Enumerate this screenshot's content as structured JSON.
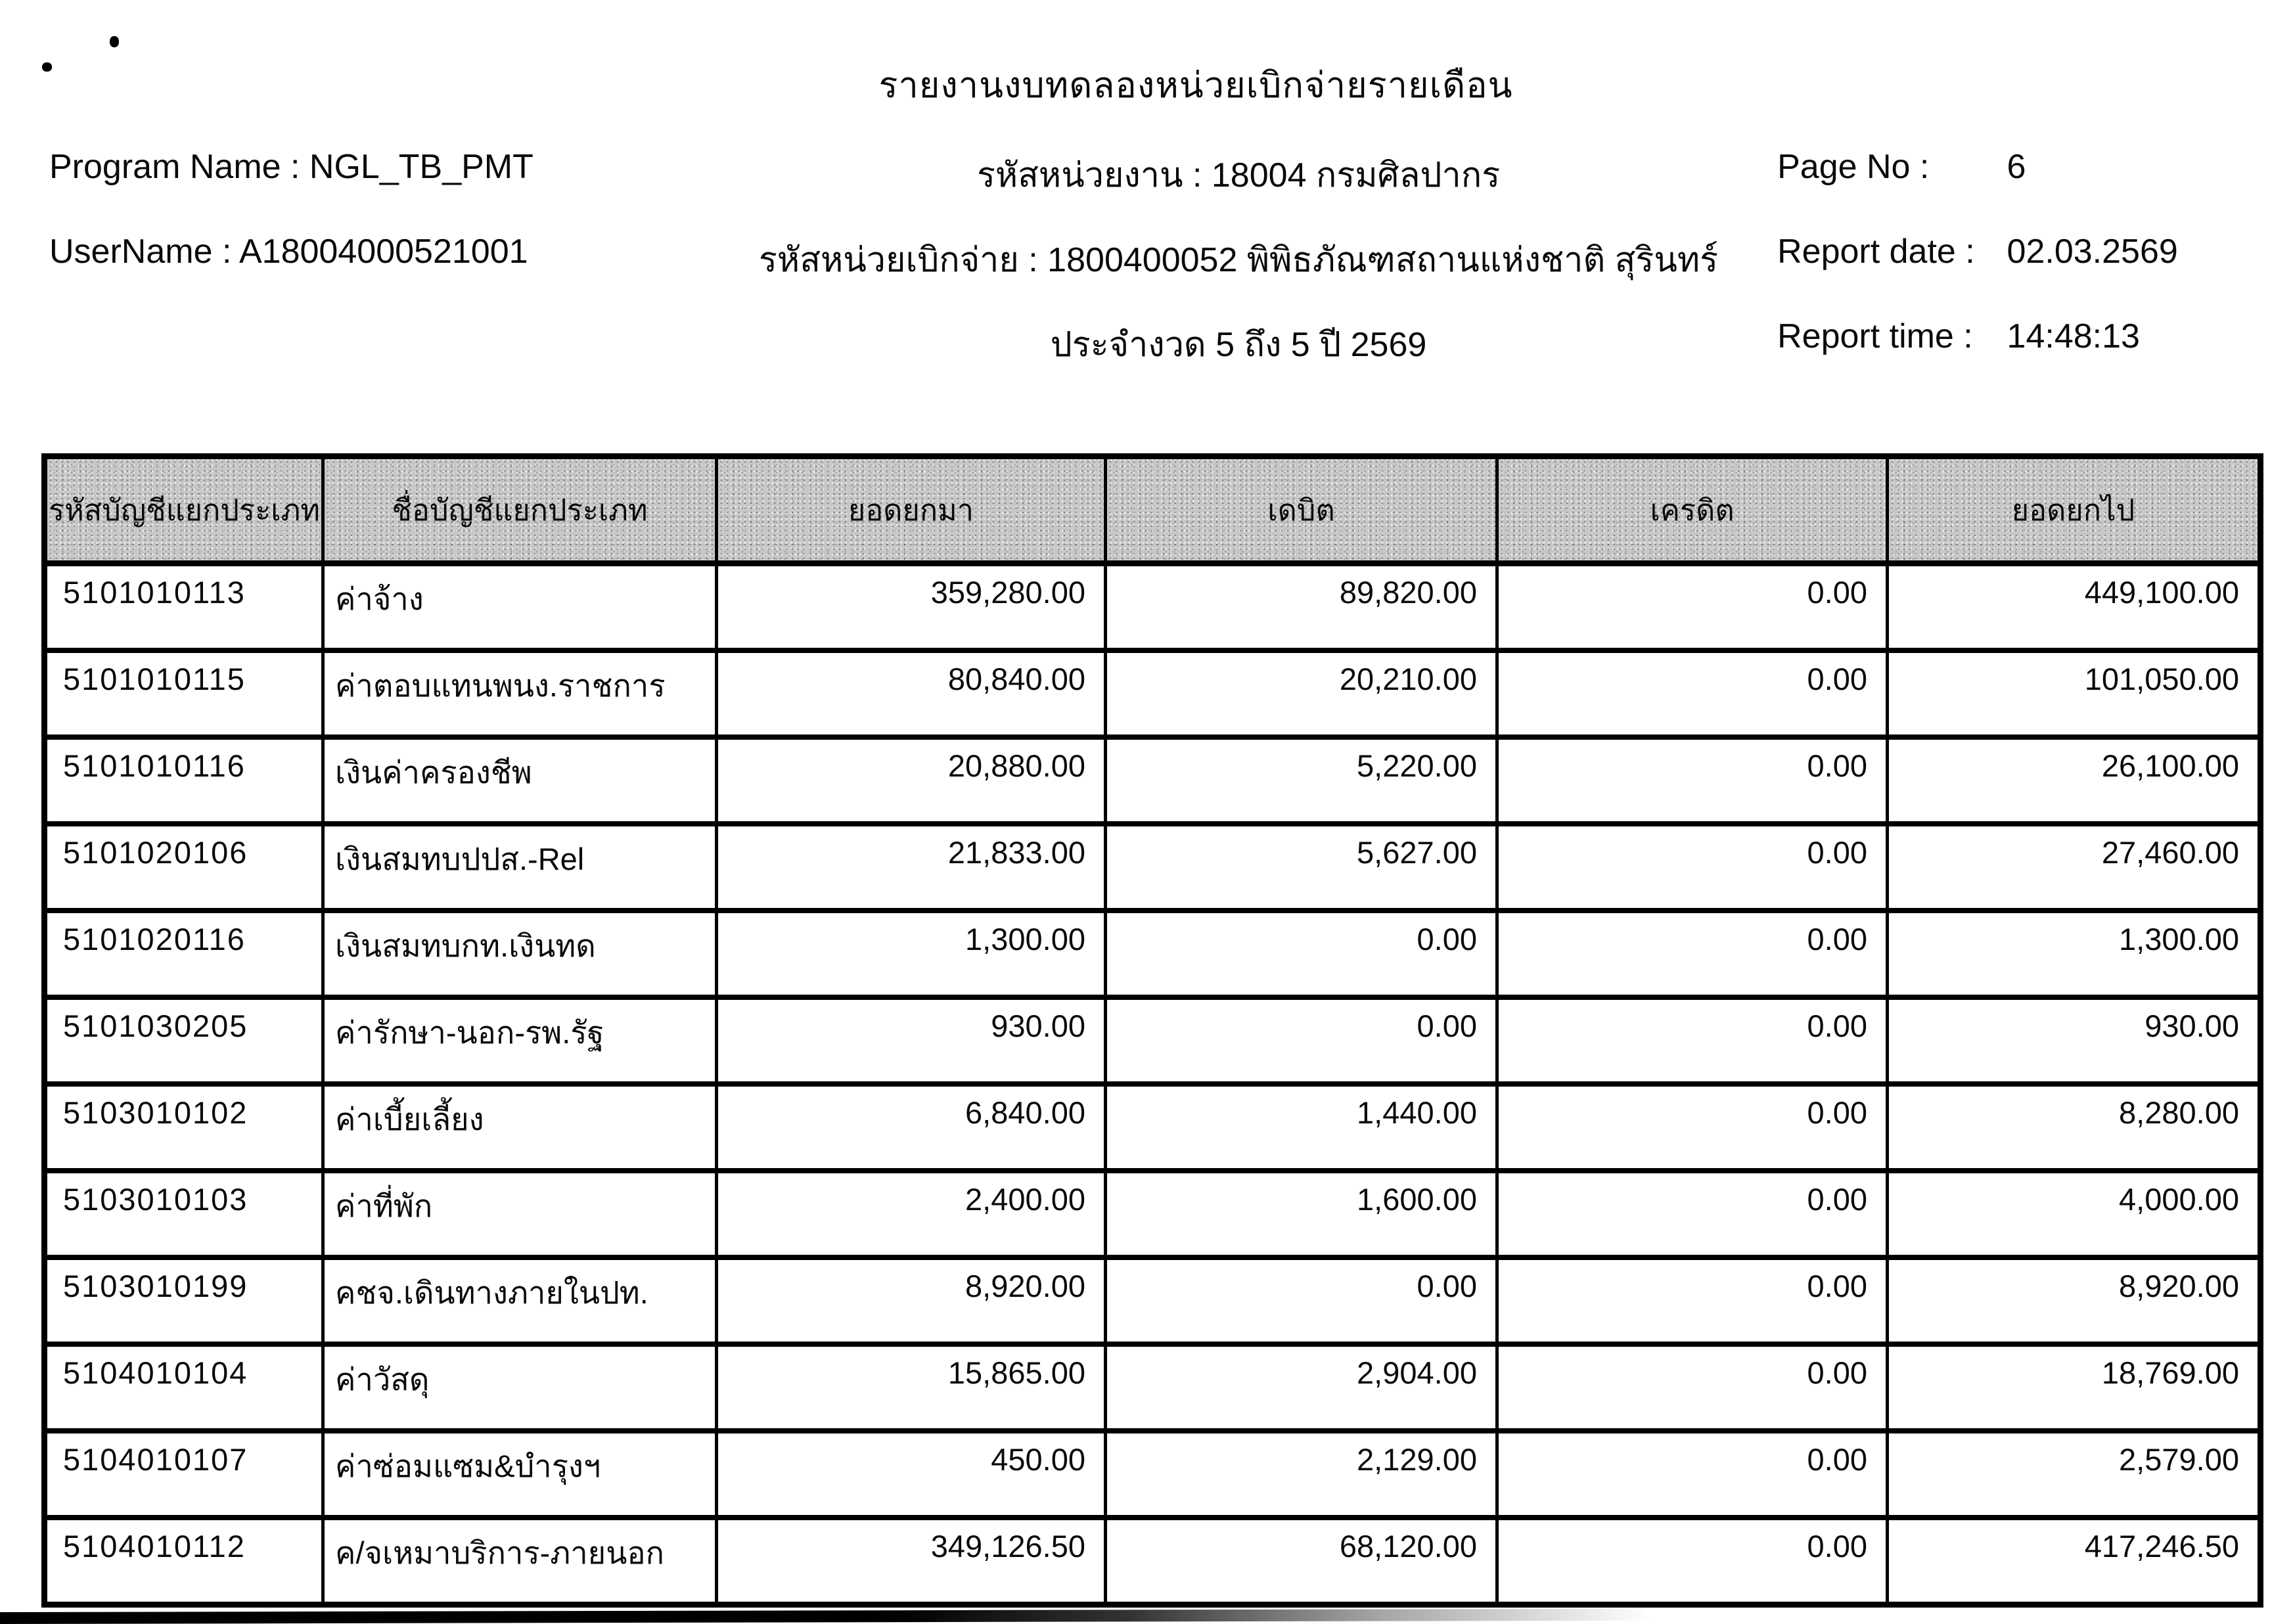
{
  "header": {
    "title": "รายงานงบทดลองหน่วยเบิกจ่ายรายเดือน",
    "program": {
      "label": "Program Name :",
      "value": "NGL_TB_PMT"
    },
    "username": {
      "label": "UserName :",
      "value": "A18004000521001"
    },
    "agency_line": "รหัสหน่วยงาน : 18004 กรมศิลปากร",
    "unit_line": "รหัสหน่วยเบิกจ่าย : 1800400052 พิพิธภัณฑสถานแห่งชาติ สุรินทร์",
    "period_line": "ประจำงวด 5 ถึง 5 ปี 2569",
    "page_no": {
      "label": "Page No :",
      "value": "6"
    },
    "report_date": {
      "label": "Report date :",
      "value": "02.03.2569"
    },
    "report_time": {
      "label": "Report time :",
      "value": "14:48:13"
    }
  },
  "table": {
    "columns": [
      "รหัสบัญชีแยกประเภท",
      "ชื่อบัญชีแยกประเภท",
      "ยอดยกมา",
      "เดบิต",
      "เครดิต",
      "ยอดยกไป"
    ],
    "rows": [
      [
        "5101010113",
        "ค่าจ้าง",
        "359,280.00",
        "89,820.00",
        "0.00",
        "449,100.00"
      ],
      [
        "5101010115",
        "ค่าตอบแทนพนง.ราชการ",
        "80,840.00",
        "20,210.00",
        "0.00",
        "101,050.00"
      ],
      [
        "5101010116",
        "เงินค่าครองชีพ",
        "20,880.00",
        "5,220.00",
        "0.00",
        "26,100.00"
      ],
      [
        "5101020106",
        "เงินสมทบปปส.-Rel",
        "21,833.00",
        "5,627.00",
        "0.00",
        "27,460.00"
      ],
      [
        "5101020116",
        "เงินสมทบกท.เงินทด",
        "1,300.00",
        "0.00",
        "0.00",
        "1,300.00"
      ],
      [
        "5101030205",
        "ค่ารักษา-นอก-รพ.รัฐ",
        "930.00",
        "0.00",
        "0.00",
        "930.00"
      ],
      [
        "5103010102",
        "ค่าเบี้ยเลี้ยง",
        "6,840.00",
        "1,440.00",
        "0.00",
        "8,280.00"
      ],
      [
        "5103010103",
        "ค่าที่พัก",
        "2,400.00",
        "1,600.00",
        "0.00",
        "4,000.00"
      ],
      [
        "5103010199",
        "คชจ.เดินทางภายในปท.",
        "8,920.00",
        "0.00",
        "0.00",
        "8,920.00"
      ],
      [
        "5104010104",
        "ค่าวัสดุ",
        "15,865.00",
        "2,904.00",
        "0.00",
        "18,769.00"
      ],
      [
        "5104010107",
        "ค่าซ่อมแซม&บำรุงฯ",
        "450.00",
        "2,129.00",
        "0.00",
        "2,579.00"
      ],
      [
        "5104010112",
        "ค/จเหมาบริการ-ภายนอก",
        "349,126.50",
        "68,120.00",
        "0.00",
        "417,246.50"
      ]
    ]
  }
}
